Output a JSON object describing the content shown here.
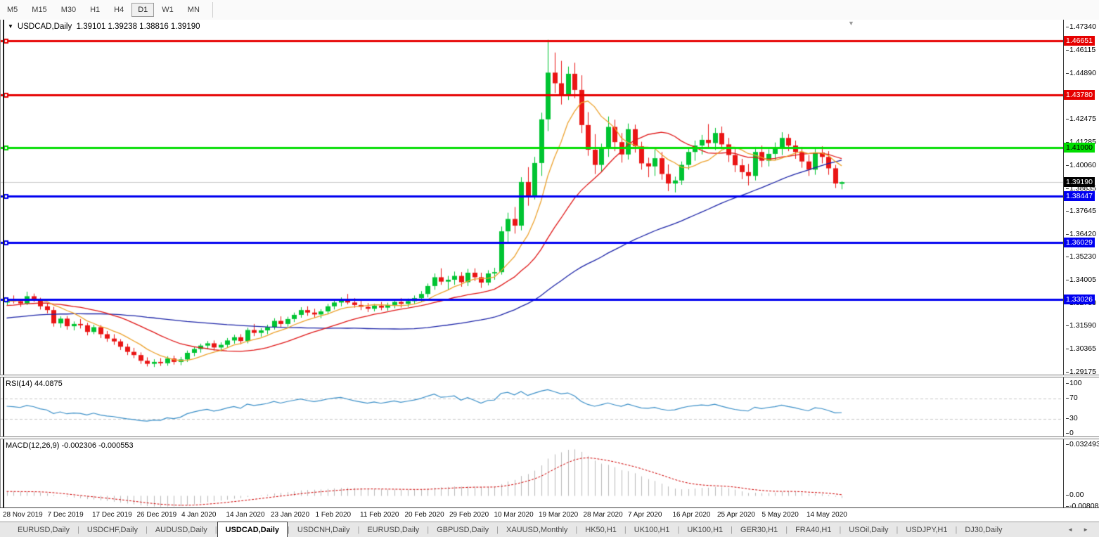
{
  "toolbar": {
    "timeframes": [
      "M5",
      "M15",
      "M30",
      "H1",
      "H4",
      "D1",
      "W1",
      "MN"
    ],
    "active": "D1"
  },
  "chart": {
    "title_symbol": "USDCAD,Daily",
    "title_ohlc": "1.39101 1.39238 1.38816 1.39190",
    "current_price": "1.39190",
    "price_ticks": [
      "1.47340",
      "1.46115",
      "1.44890",
      "1.42475",
      "1.41285",
      "1.40060",
      "1.38835",
      "1.37645",
      "1.36420",
      "1.35230",
      "1.34005",
      "1.32780",
      "1.31590",
      "1.30365",
      "1.29175"
    ],
    "hlines": [
      {
        "label": "1.46651",
        "price": 1.46651,
        "color": "#e60000",
        "text_color": "#ffffff"
      },
      {
        "label": "1.43780",
        "price": 1.4378,
        "color": "#e60000",
        "text_color": "#ffffff"
      },
      {
        "label": "1.41000",
        "price": 1.41,
        "color": "#00dd00",
        "text_color": "#000000"
      },
      {
        "label": "1.38447",
        "price": 1.38447,
        "color": "#0000f0",
        "text_color": "#ffffff"
      },
      {
        "label": "1.36029",
        "price": 1.36029,
        "color": "#0000f0",
        "text_color": "#ffffff"
      },
      {
        "label": "1.33026",
        "price": 1.33026,
        "color": "#0000f0",
        "text_color": "#ffffff"
      }
    ],
    "colors": {
      "bull": "#00c432",
      "bear": "#ea1515",
      "ma_fast": "#eda22d",
      "ma_mid": "#e01616",
      "ma_slow": "#1c24a8",
      "rsi_line": "#3a8fc8",
      "rsi_grid": "#c8c8c8",
      "macd_hist": "#b9b9b9",
      "macd_signal": "#d00000",
      "price_line": "#c9c9c9",
      "current_tag_bg": "#000000",
      "current_tag_text": "#ffffff"
    }
  },
  "rsi": {
    "label": "RSI(14) 44.0875",
    "ticks": [
      {
        "text": "100",
        "value": 100
      },
      {
        "text": "70",
        "value": 70
      },
      {
        "text": "30",
        "value": 30
      },
      {
        "text": "0",
        "value": 0
      }
    ],
    "grid_levels": [
      70,
      30
    ]
  },
  "macd": {
    "label": "MACD(12,26,9) -0.002306 -0.000553",
    "ticks": [
      {
        "text": "0.032493",
        "value": 0.032493
      },
      {
        "text": "0.00",
        "value": 0
      },
      {
        "text": "-0.00808",
        "value": -0.00808
      }
    ],
    "max": 0.032493,
    "min": -0.00808
  },
  "dates": [
    "28 Nov 2019",
    "7 Dec 2019",
    "17 Dec 2019",
    "26 Dec 2019",
    "4 Jan 2020",
    "14 Jan 2020",
    "23 Jan 2020",
    "1 Feb 2020",
    "11 Feb 2020",
    "20 Feb 2020",
    "29 Feb 2020",
    "10 Mar 2020",
    "19 Mar 2020",
    "28 Mar 2020",
    "7 Apr 2020",
    "16 Apr 2020",
    "25 Apr 2020",
    "5 May 2020",
    "14 May 2020"
  ],
  "tabs": {
    "items": [
      "EURUSD,Daily",
      "USDCHF,Daily",
      "AUDUSD,Daily",
      "USDCAD,Daily",
      "USDCNH,Daily",
      "EURUSD,Daily",
      "GBPUSD,Daily",
      "XAUUSD,Monthly",
      "HK50,H1",
      "UK100,H1",
      "UK100,H1",
      "GER30,H1",
      "FRA40,H1",
      "USOil,Daily",
      "USDJPY,H1",
      "DJ30,Daily"
    ],
    "active_index": 3,
    "arrows": [
      "◄",
      "►"
    ]
  },
  "chart_data": {
    "type": "candlestick",
    "symbol": "USDCAD",
    "timeframe": "Daily",
    "title": "USDCAD,Daily 1.39101 1.39238 1.38816 1.39190",
    "price_axis_range": [
      1.2905,
      1.4775
    ],
    "indicators": [
      "Moving averages (fast/medium/slow)",
      "RSI(14)=44.0875",
      "MACD(12,26,9)=-0.002306 signal=-0.000553"
    ],
    "horizontal_levels": [
      1.46651,
      1.4378,
      1.41,
      1.3919,
      1.38447,
      1.36029,
      1.33026
    ],
    "candles_ohlc": [
      [
        1.3285,
        1.3312,
        1.3268,
        1.33
      ],
      [
        1.33,
        1.3322,
        1.328,
        1.3292
      ],
      [
        1.3292,
        1.3305,
        1.3262,
        1.328
      ],
      [
        1.328,
        1.3342,
        1.3272,
        1.3318
      ],
      [
        1.3318,
        1.3332,
        1.3288,
        1.33
      ],
      [
        1.33,
        1.331,
        1.3248,
        1.3265
      ],
      [
        1.3265,
        1.3282,
        1.3228,
        1.3245
      ],
      [
        1.3245,
        1.3262,
        1.3158,
        1.3175
      ],
      [
        1.3175,
        1.3212,
        1.3152,
        1.32
      ],
      [
        1.32,
        1.3214,
        1.3142,
        1.316
      ],
      [
        1.316,
        1.3185,
        1.3138,
        1.3172
      ],
      [
        1.3172,
        1.3198,
        1.3148,
        1.3165
      ],
      [
        1.3165,
        1.3178,
        1.3112,
        1.313
      ],
      [
        1.313,
        1.3168,
        1.3118,
        1.3155
      ],
      [
        1.3155,
        1.3166,
        1.3098,
        1.3118
      ],
      [
        1.3118,
        1.3135,
        1.3078,
        1.3095
      ],
      [
        1.3095,
        1.3118,
        1.3062,
        1.308
      ],
      [
        1.308,
        1.3092,
        1.3035,
        1.3052
      ],
      [
        1.3052,
        1.3068,
        1.3008,
        1.3025
      ],
      [
        1.3025,
        1.3046,
        1.2992,
        1.3008
      ],
      [
        1.3008,
        1.3022,
        1.2962,
        1.2978
      ],
      [
        1.2978,
        1.2996,
        1.2948,
        1.2962
      ],
      [
        1.2962,
        1.2986,
        1.2945,
        1.2972
      ],
      [
        1.2972,
        1.2992,
        1.2951,
        1.2965
      ],
      [
        1.2965,
        1.3002,
        1.2952,
        1.299
      ],
      [
        1.299,
        1.3005,
        1.2958,
        1.2972
      ],
      [
        1.2972,
        1.2998,
        1.2955,
        1.2985
      ],
      [
        1.2985,
        1.3032,
        1.2972,
        1.302
      ],
      [
        1.302,
        1.3052,
        1.3002,
        1.304
      ],
      [
        1.304,
        1.3068,
        1.3021,
        1.3058
      ],
      [
        1.3058,
        1.3082,
        1.3038,
        1.307
      ],
      [
        1.307,
        1.3085,
        1.3032,
        1.3048
      ],
      [
        1.3048,
        1.3075,
        1.3028,
        1.3062
      ],
      [
        1.3062,
        1.3098,
        1.3048,
        1.3085
      ],
      [
        1.3085,
        1.3115,
        1.3068,
        1.3102
      ],
      [
        1.3102,
        1.3118,
        1.3065,
        1.3082
      ],
      [
        1.3082,
        1.3152,
        1.307,
        1.314
      ],
      [
        1.314,
        1.3172,
        1.3108,
        1.3125
      ],
      [
        1.3125,
        1.315,
        1.3105,
        1.3138
      ],
      [
        1.3138,
        1.3168,
        1.3118,
        1.3155
      ],
      [
        1.3155,
        1.3202,
        1.3142,
        1.3188
      ],
      [
        1.3188,
        1.3212,
        1.3155,
        1.3172
      ],
      [
        1.3172,
        1.321,
        1.3158,
        1.3198
      ],
      [
        1.3198,
        1.3232,
        1.3182,
        1.322
      ],
      [
        1.322,
        1.326,
        1.3205,
        1.3245
      ],
      [
        1.3245,
        1.3265,
        1.3215,
        1.3232
      ],
      [
        1.3232,
        1.3252,
        1.3205,
        1.3222
      ],
      [
        1.3222,
        1.325,
        1.3202,
        1.3238
      ],
      [
        1.3238,
        1.3278,
        1.3222,
        1.3265
      ],
      [
        1.3265,
        1.3298,
        1.3248,
        1.3285
      ],
      [
        1.3285,
        1.3312,
        1.3265,
        1.3298
      ],
      [
        1.3298,
        1.333,
        1.3275,
        1.3285
      ],
      [
        1.3285,
        1.3308,
        1.3258,
        1.3272
      ],
      [
        1.3272,
        1.3295,
        1.3245,
        1.3262
      ],
      [
        1.3262,
        1.3282,
        1.3235,
        1.3252
      ],
      [
        1.3252,
        1.3278,
        1.3238,
        1.3268
      ],
      [
        1.3268,
        1.3288,
        1.3244,
        1.3258
      ],
      [
        1.3258,
        1.3284,
        1.3242,
        1.3272
      ],
      [
        1.3272,
        1.3302,
        1.3255,
        1.3288
      ],
      [
        1.3288,
        1.3308,
        1.3258,
        1.3278
      ],
      [
        1.3278,
        1.3306,
        1.3262,
        1.3292
      ],
      [
        1.3292,
        1.3322,
        1.3275,
        1.3308
      ],
      [
        1.3308,
        1.3345,
        1.3288,
        1.333
      ],
      [
        1.333,
        1.3385,
        1.3312,
        1.3372
      ],
      [
        1.3372,
        1.3438,
        1.3352,
        1.3418
      ],
      [
        1.3418,
        1.3465,
        1.3378,
        1.3395
      ],
      [
        1.3395,
        1.3425,
        1.3352,
        1.3405
      ],
      [
        1.3405,
        1.3448,
        1.3378,
        1.3425
      ],
      [
        1.3425,
        1.3445,
        1.3368,
        1.3392
      ],
      [
        1.3392,
        1.3462,
        1.3372,
        1.3442
      ],
      [
        1.3442,
        1.3465,
        1.3398,
        1.3418
      ],
      [
        1.3418,
        1.3442,
        1.3362,
        1.339
      ],
      [
        1.339,
        1.3455,
        1.3375,
        1.3438
      ],
      [
        1.3438,
        1.3468,
        1.3405,
        1.3445
      ],
      [
        1.3445,
        1.3685,
        1.3432,
        1.366
      ],
      [
        1.366,
        1.3758,
        1.3602,
        1.3725
      ],
      [
        1.3725,
        1.3788,
        1.3648,
        1.369
      ],
      [
        1.369,
        1.3945,
        1.3665,
        1.392
      ],
      [
        1.392,
        1.3998,
        1.3795,
        1.3848
      ],
      [
        1.3848,
        1.4052,
        1.3828,
        1.402
      ],
      [
        1.402,
        1.4285,
        1.3952,
        1.425
      ],
      [
        1.425,
        1.4669,
        1.4188,
        1.4496
      ],
      [
        1.4496,
        1.4602,
        1.4388,
        1.444
      ],
      [
        1.444,
        1.4558,
        1.4328,
        1.438
      ],
      [
        1.438,
        1.4528,
        1.4352,
        1.449
      ],
      [
        1.449,
        1.4548,
        1.4362,
        1.4405
      ],
      [
        1.4405,
        1.4482,
        1.4178,
        1.422
      ],
      [
        1.422,
        1.4288,
        1.4058,
        1.409
      ],
      [
        1.409,
        1.4172,
        1.3962,
        1.401
      ],
      [
        1.401,
        1.4122,
        1.3975,
        1.4095
      ],
      [
        1.4095,
        1.4265,
        1.4052,
        1.421
      ],
      [
        1.421,
        1.4248,
        1.4082,
        1.413
      ],
      [
        1.413,
        1.4178,
        1.4022,
        1.4065
      ],
      [
        1.4065,
        1.4228,
        1.4038,
        1.4198
      ],
      [
        1.4198,
        1.4222,
        1.4075,
        1.4108
      ],
      [
        1.4108,
        1.4132,
        1.3985,
        1.4018
      ],
      [
        1.4018,
        1.4048,
        1.3945,
        1.4002
      ],
      [
        1.4002,
        1.4092,
        1.3952,
        1.4045
      ],
      [
        1.4045,
        1.4078,
        1.3932,
        1.3962
      ],
      [
        1.3962,
        1.4012,
        1.3872,
        1.3912
      ],
      [
        1.3912,
        1.3948,
        1.3865,
        1.3928
      ],
      [
        1.3928,
        1.4028,
        1.3905,
        1.401
      ],
      [
        1.401,
        1.4098,
        1.3985,
        1.4078
      ],
      [
        1.4078,
        1.4138,
        1.4032,
        1.4112
      ],
      [
        1.4112,
        1.4168,
        1.4065,
        1.4142
      ],
      [
        1.4142,
        1.4225,
        1.4095,
        1.4125
      ],
      [
        1.4125,
        1.4205,
        1.4088,
        1.4178
      ],
      [
        1.4178,
        1.4212,
        1.4092,
        1.4118
      ],
      [
        1.4118,
        1.4152,
        1.4025,
        1.4062
      ],
      [
        1.4062,
        1.4098,
        1.3972,
        1.4008
      ],
      [
        1.4008,
        1.4042,
        1.3935,
        1.3972
      ],
      [
        1.3972,
        1.4015,
        1.3902,
        1.3952
      ],
      [
        1.3952,
        1.4105,
        1.3928,
        1.4078
      ],
      [
        1.4078,
        1.4112,
        1.3998,
        1.4032
      ],
      [
        1.4032,
        1.4092,
        1.4002,
        1.4068
      ],
      [
        1.4068,
        1.4128,
        1.4035,
        1.4098
      ],
      [
        1.4098,
        1.4182,
        1.4062,
        1.4152
      ],
      [
        1.4152,
        1.4172,
        1.4082,
        1.4112
      ],
      [
        1.4112,
        1.4138,
        1.4042,
        1.4078
      ],
      [
        1.4078,
        1.4105,
        1.3995,
        1.4028
      ],
      [
        1.4028,
        1.4062,
        1.3952,
        1.3985
      ],
      [
        1.3985,
        1.4095,
        1.3958,
        1.4075
      ],
      [
        1.4075,
        1.4108,
        1.4018,
        1.4052
      ],
      [
        1.4052,
        1.4082,
        1.3958,
        1.3992
      ],
      [
        1.3992,
        1.401,
        1.3888,
        1.3912
      ],
      [
        1.39101,
        1.39238,
        1.38816,
        1.3919
      ]
    ]
  }
}
